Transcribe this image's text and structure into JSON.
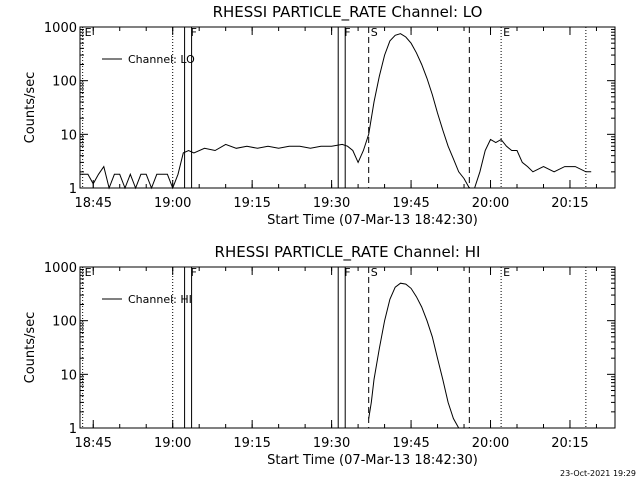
{
  "chart_data": [
    {
      "type": "line",
      "title": "RHESSI PARTICLE_RATE Channel: LO",
      "xlabel": "Start Time (07-Mar-13 18:42:30)",
      "ylabel": "Counts/sec",
      "yscale": "log",
      "ylim": [
        1,
        1000
      ],
      "y_ticks": [
        "1",
        "10",
        "100",
        "1000"
      ],
      "x_ticks": [
        "18:45",
        "19:00",
        "19:15",
        "19:30",
        "19:45",
        "20:00",
        "20:15"
      ],
      "xlim": [
        "18:42:30",
        "20:23:30"
      ],
      "legend_position": "top-left",
      "series": [
        {
          "name": "Channel: LO",
          "x": [
            "18:42:30",
            "18:43",
            "18:44",
            "18:45",
            "18:46",
            "18:47",
            "18:48",
            "18:49",
            "18:50",
            "18:51",
            "18:52",
            "18:53",
            "18:54",
            "18:55",
            "18:56",
            "18:57",
            "18:58",
            "18:59",
            "19:00",
            "19:01",
            "19:02",
            "19:03",
            "19:04",
            "19:06",
            "19:08",
            "19:10",
            "19:12",
            "19:14",
            "19:16",
            "19:18",
            "19:20",
            "19:22",
            "19:24",
            "19:26",
            "19:28",
            "19:30",
            "19:32",
            "19:33",
            "19:34",
            "19:35",
            "19:36",
            "19:37",
            "19:38",
            "19:39",
            "19:40",
            "19:41",
            "19:42",
            "19:43",
            "19:44",
            "19:45",
            "19:46",
            "19:47",
            "19:48",
            "19:49",
            "19:50",
            "19:51",
            "19:52",
            "19:53",
            "19:54",
            "19:55",
            "19:56",
            "19:57",
            "19:58",
            "19:59",
            "20:00",
            "20:01",
            "20:02",
            "20:03",
            "20:04",
            "20:05",
            "20:06",
            "20:07",
            "20:08",
            "20:10",
            "20:12",
            "20:14",
            "20:16",
            "20:18",
            "20:19"
          ],
          "y": [
            1.8,
            1.8,
            1.8,
            1.2,
            1.8,
            2.5,
            1.0,
            1.8,
            1.8,
            1.0,
            1.8,
            1.0,
            1.8,
            1.8,
            1.0,
            1.8,
            1.8,
            1.8,
            1.0,
            1.8,
            4.5,
            5.0,
            4.5,
            5.5,
            5.0,
            6.5,
            5.5,
            6.0,
            5.5,
            6.0,
            5.5,
            6.0,
            6.0,
            5.5,
            6.0,
            6.0,
            6.5,
            6.0,
            5.0,
            3.0,
            5.0,
            10,
            40,
            120,
            300,
            550,
            700,
            750,
            650,
            500,
            330,
            200,
            110,
            55,
            25,
            12,
            6.0,
            3.5,
            2.0,
            1.5,
            1.0,
            1.0,
            2.0,
            5.0,
            8.0,
            7.0,
            8.0,
            6.0,
            5.0,
            5.0,
            3.0,
            2.5,
            2.0,
            2.5,
            2.0,
            2.5,
            2.5,
            2.0,
            2.0
          ]
        }
      ],
      "markers": [
        {
          "label": "E",
          "time": "18:43",
          "style": "dotted"
        },
        {
          "label": "F",
          "time": "19:03",
          "style": "double-solid"
        },
        {
          "label": "F",
          "time": "19:32",
          "style": "double-solid"
        },
        {
          "label": "S",
          "time": "19:37",
          "style": "dashed"
        },
        {
          "label": "",
          "time": "19:56",
          "style": "dashed"
        },
        {
          "label": "E",
          "time": "20:02",
          "style": "dotted"
        },
        {
          "label": "",
          "time": "19:00",
          "style": "dotted"
        },
        {
          "label": "",
          "time": "20:18",
          "style": "dotted"
        }
      ]
    },
    {
      "type": "line",
      "title": "RHESSI PARTICLE_RATE Channel: HI",
      "xlabel": "Start Time (07-Mar-13 18:42:30)",
      "ylabel": "Counts/sec",
      "yscale": "log",
      "ylim": [
        1,
        1000
      ],
      "y_ticks": [
        "1",
        "10",
        "100",
        "1000"
      ],
      "x_ticks": [
        "18:45",
        "19:00",
        "19:15",
        "19:30",
        "19:45",
        "20:00",
        "20:15"
      ],
      "xlim": [
        "18:42:30",
        "20:23:30"
      ],
      "legend_position": "top-left",
      "series": [
        {
          "name": "Channel: HI",
          "x": [
            "19:37",
            "19:37:30",
            "19:38",
            "19:39",
            "19:40",
            "19:41",
            "19:42",
            "19:43",
            "19:44",
            "19:45",
            "19:46",
            "19:47",
            "19:48",
            "19:49",
            "19:50",
            "19:51",
            "19:52",
            "19:53",
            "19:54"
          ],
          "y": [
            1.5,
            3,
            8,
            30,
            100,
            250,
            420,
            500,
            480,
            400,
            280,
            180,
            100,
            50,
            20,
            8,
            3,
            1.5,
            1
          ]
        }
      ],
      "markers": [
        {
          "label": "E",
          "time": "18:43",
          "style": "dotted"
        },
        {
          "label": "F",
          "time": "19:03",
          "style": "double-solid"
        },
        {
          "label": "F",
          "time": "19:32",
          "style": "double-solid"
        },
        {
          "label": "S",
          "time": "19:37",
          "style": "dashed"
        },
        {
          "label": "",
          "time": "19:56",
          "style": "dashed"
        },
        {
          "label": "E",
          "time": "20:02",
          "style": "dotted"
        },
        {
          "label": "",
          "time": "19:00",
          "style": "dotted"
        },
        {
          "label": "",
          "time": "20:18",
          "style": "dotted"
        }
      ]
    }
  ],
  "footer": {
    "timestamp": "23-Oct-2021 19:29"
  }
}
